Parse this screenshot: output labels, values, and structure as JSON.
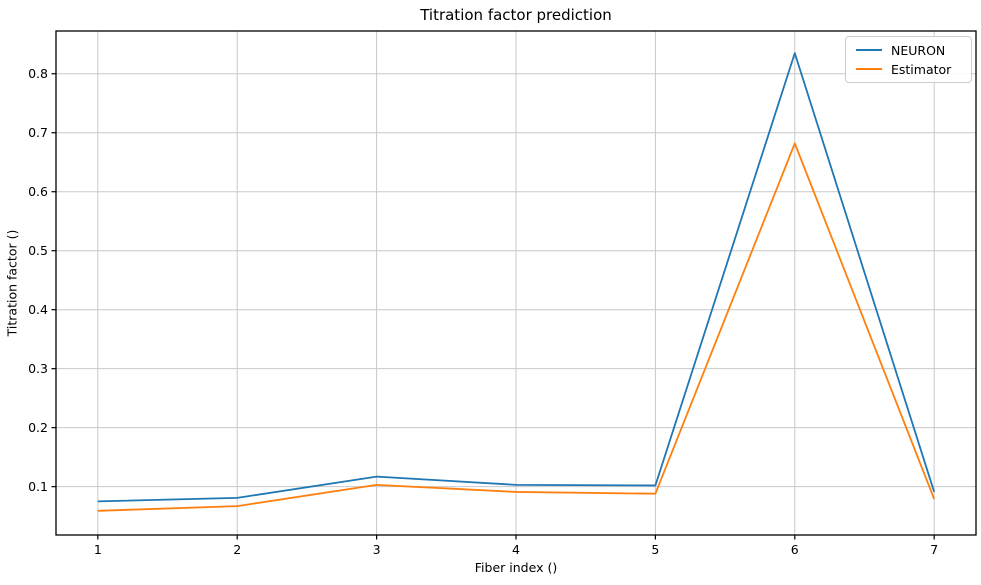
{
  "chart_data": {
    "type": "line",
    "title": "Titration factor prediction",
    "xlabel": "Fiber index ()",
    "ylabel": "Titration factor ()",
    "x": [
      1,
      2,
      3,
      4,
      5,
      6,
      7
    ],
    "series": [
      {
        "name": "NEURON",
        "color": "#1f77b4",
        "values": [
          0.075,
          0.081,
          0.117,
          0.103,
          0.102,
          0.835,
          0.091
        ]
      },
      {
        "name": "Estimator",
        "color": "#ff7f0e",
        "values": [
          0.059,
          0.067,
          0.103,
          0.091,
          0.088,
          0.682,
          0.079
        ]
      }
    ],
    "xticks": [
      1,
      2,
      3,
      4,
      5,
      6,
      7
    ],
    "yticks": [
      0.1,
      0.2,
      0.3,
      0.4,
      0.5,
      0.6,
      0.7,
      0.8
    ],
    "xlim": [
      0.7,
      7.3
    ],
    "ylim": [
      0.018,
      0.8725
    ],
    "grid": true,
    "legend_position": "upper right",
    "colors": {
      "grid": "#c8c8c8",
      "spine": "#000000",
      "text": "#000000",
      "background": "#ffffff"
    }
  }
}
